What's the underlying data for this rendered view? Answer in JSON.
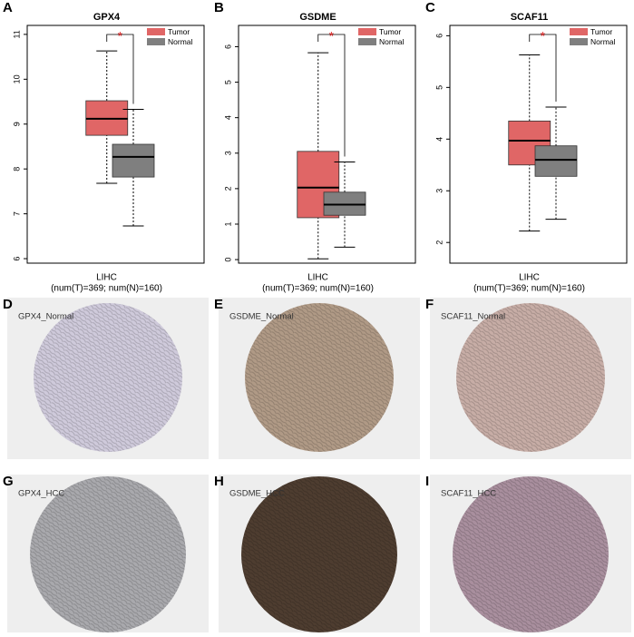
{
  "chart_data": [
    {
      "type": "box",
      "panel": "A",
      "title": "GPX4",
      "xlabel": "LIHC",
      "xlabel_detail": "(num(T)=369; num(N)=160)",
      "annotation": "*",
      "legend": "top-right",
      "ylim": [
        5.9,
        11.2
      ],
      "yticks": [
        6,
        7,
        8,
        9,
        10,
        11
      ],
      "series": [
        {
          "name": "Tumor",
          "color": "#e06666",
          "values": [
            7.68,
            8.75,
            9.12,
            9.52,
            10.63
          ]
        },
        {
          "name": "Normal",
          "color": "#7f7f7f",
          "values": [
            6.73,
            7.82,
            8.27,
            8.55,
            9.33
          ]
        }
      ]
    },
    {
      "type": "box",
      "panel": "B",
      "title": "GSDME",
      "xlabel": "LIHC",
      "xlabel_detail": "(num(T)=369; num(N)=160)",
      "annotation": "*",
      "legend": "top-right",
      "ylim": [
        -0.1,
        6.6
      ],
      "yticks": [
        0,
        1,
        2,
        3,
        4,
        5,
        6
      ],
      "series": [
        {
          "name": "Tumor",
          "color": "#e06666",
          "values": [
            0.02,
            1.18,
            2.03,
            3.05,
            5.83
          ]
        },
        {
          "name": "Normal",
          "color": "#7f7f7f",
          "values": [
            0.35,
            1.25,
            1.55,
            1.9,
            2.75
          ]
        }
      ]
    },
    {
      "type": "box",
      "panel": "C",
      "title": "SCAF11",
      "xlabel": "LIHC",
      "xlabel_detail": "(num(T)=369; num(N)=160)",
      "annotation": "*",
      "legend": "top-right",
      "ylim": [
        1.6,
        6.2
      ],
      "yticks": [
        2,
        3,
        4,
        5,
        6
      ],
      "series": [
        {
          "name": "Tumor",
          "color": "#e06666",
          "values": [
            2.22,
            3.5,
            3.97,
            4.35,
            5.63
          ]
        },
        {
          "name": "Normal",
          "color": "#7f7f7f",
          "values": [
            2.45,
            3.28,
            3.6,
            3.87,
            4.62
          ]
        }
      ]
    }
  ],
  "images": [
    {
      "panel": "D",
      "label": "GPX4_Normal",
      "color": "#cfcadb"
    },
    {
      "panel": "E",
      "label": "GSDME_Normal",
      "color": "#b09a86"
    },
    {
      "panel": "F",
      "label": "SCAF11_Normal",
      "color": "#c7ada6"
    },
    {
      "panel": "G",
      "label": "GPX4_HCC",
      "color": "#a9a9ad"
    },
    {
      "panel": "H",
      "label": "GSDME_HCC",
      "color": "#4e3d30"
    },
    {
      "panel": "I",
      "label": "SCAF11_HCC",
      "color": "#a98f9e"
    }
  ]
}
